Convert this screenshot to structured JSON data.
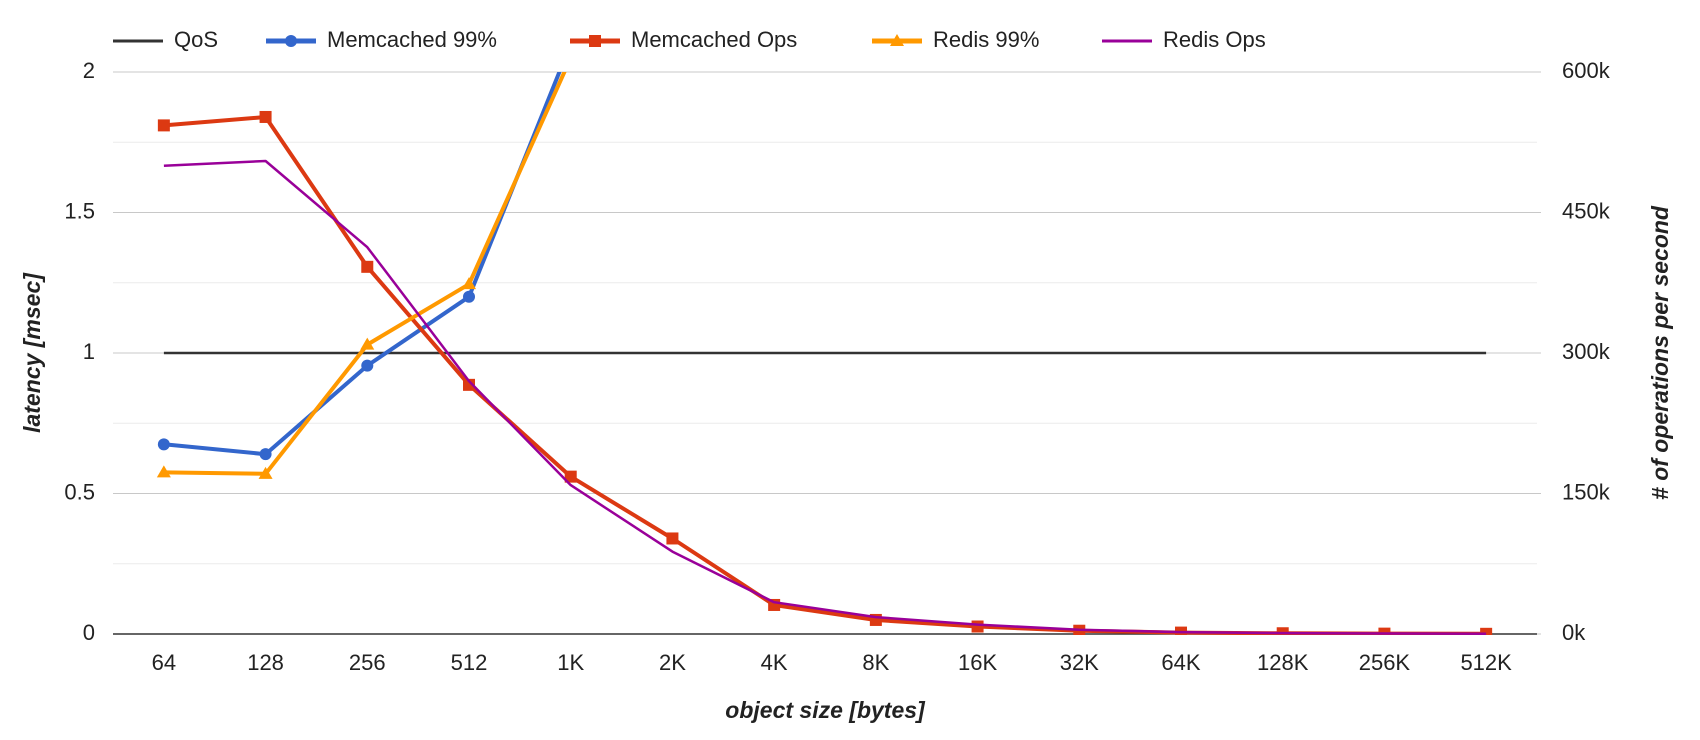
{
  "chart_data": {
    "type": "line",
    "x_label": "object size [bytes]",
    "y_label": "latency [msec]",
    "y2_label": "# of operations per second",
    "categories": [
      "64",
      "128",
      "256",
      "512",
      "1K",
      "2K",
      "4K",
      "8K",
      "16K",
      "32K",
      "64K",
      "128K",
      "256K",
      "512K"
    ],
    "ylim": [
      0,
      2
    ],
    "yticks": [
      0,
      0.5,
      1,
      1.5,
      2
    ],
    "minor_yticks": [
      0.25,
      0.75,
      1.25,
      1.75
    ],
    "y2lim": [
      0,
      600000
    ],
    "y2ticks": [
      {
        "value": 0,
        "label": "0k"
      },
      {
        "value": 150000,
        "label": "150k"
      },
      {
        "value": 300000,
        "label": "300k"
      },
      {
        "value": 450000,
        "label": "450k"
      },
      {
        "value": 600000,
        "label": "600k"
      }
    ],
    "grid": true,
    "legend": "top",
    "series": [
      {
        "name": "QoS",
        "color": "#333333",
        "marker": "none",
        "values": [
          1,
          1,
          1,
          1,
          1,
          1,
          1,
          1,
          1,
          1,
          1,
          1,
          1,
          1
        ]
      },
      {
        "name": "Memcached 99%",
        "color": "#3366cc",
        "marker": "circle",
        "values": [
          0.675,
          0.64,
          0.955,
          1.2,
          2.1,
          null,
          null,
          null,
          null,
          null,
          null,
          null,
          null,
          null
        ]
      },
      {
        "name": "Memcached Ops",
        "color": "#dc3912",
        "marker": "square",
        "axis": "y2",
        "values": [
          543000,
          552000,
          392000,
          266000,
          168000,
          102000,
          31000,
          15000,
          8000,
          3500,
          1500,
          800,
          400,
          200
        ]
      },
      {
        "name": "Redis 99%",
        "color": "#ff9900",
        "marker": "triangle",
        "values": [
          0.575,
          0.57,
          1.03,
          1.245,
          2.05,
          null,
          null,
          null,
          null,
          null,
          null,
          null,
          null,
          null
        ]
      },
      {
        "name": "Redis Ops",
        "color": "#990099",
        "marker": "none",
        "axis": "y2",
        "values": [
          500000,
          505000,
          413000,
          270000,
          159000,
          88000,
          34000,
          18000,
          10000,
          4500,
          2000,
          1000,
          500,
          300
        ]
      }
    ]
  }
}
